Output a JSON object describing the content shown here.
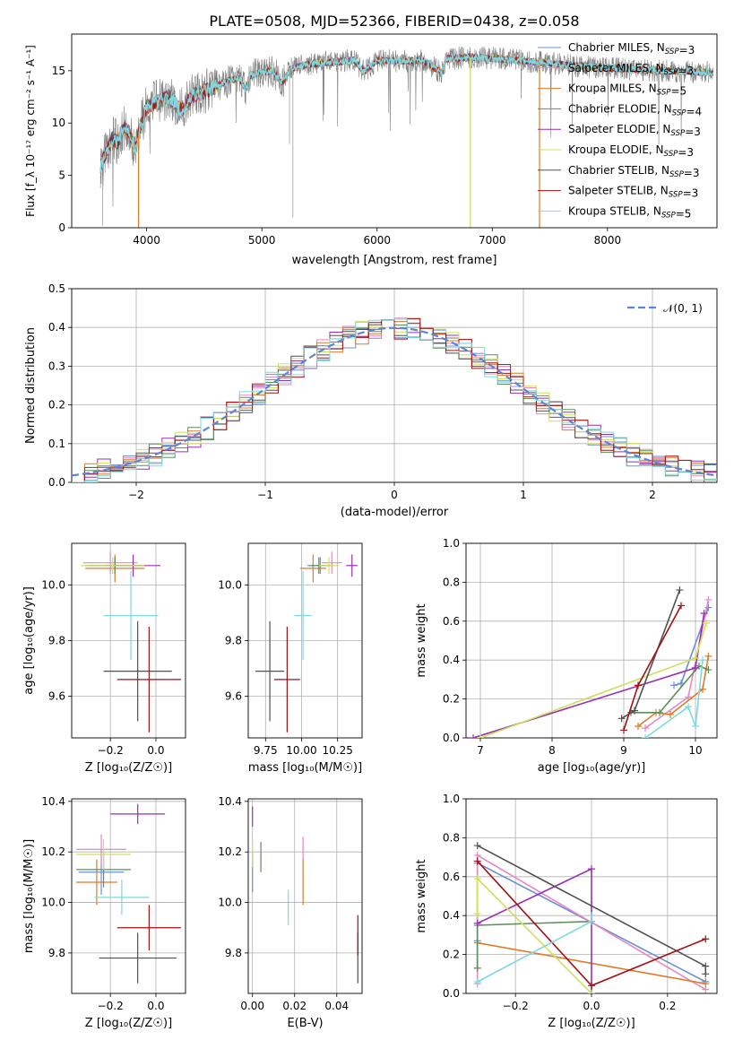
{
  "figure": {
    "title": "PLATE=0508, MJD=52366, FIBERID=0438, z=0.058",
    "series_colors": [
      "#6b8fd6",
      "#e887c3",
      "#e07a26",
      "#5c8f5c",
      "#9a2fb5",
      "#cde05a",
      "#505050",
      "#a50f12",
      "#7fd8e0"
    ]
  },
  "chart_data": [
    {
      "id": "spectrum",
      "type": "line",
      "xlabel": "wavelength [Angstrom, rest frame]",
      "ylabel": "Flux [f_λ 10⁻¹⁷ erg cm⁻² s⁻¹ A⁻¹]",
      "xlim": [
        3350,
        8950
      ],
      "ylim": [
        0,
        18.5
      ],
      "xticks": [
        "4000",
        "5000",
        "6000",
        "7000",
        "8000"
      ],
      "yticks": [
        "0",
        "5",
        "10",
        "15"
      ],
      "data_range": [
        3600,
        8920
      ],
      "grid": false,
      "legend_position": "right",
      "data_series": {
        "name": "",
        "color": "#808080",
        "points": [
          [
            3600,
            6.0
          ],
          [
            3650,
            7.2
          ],
          [
            3700,
            8.5
          ],
          [
            3750,
            8.2
          ],
          [
            3800,
            9.5
          ],
          [
            3850,
            9.1
          ],
          [
            3900,
            7.5
          ],
          [
            3950,
            9.8
          ],
          [
            4000,
            11.5
          ],
          [
            4100,
            12.0
          ],
          [
            4200,
            12.5
          ],
          [
            4300,
            11.2
          ],
          [
            4400,
            12.6
          ],
          [
            4500,
            13.0
          ],
          [
            4600,
            13.5
          ],
          [
            4700,
            14.0
          ],
          [
            4800,
            14.3
          ],
          [
            4860,
            13.2
          ],
          [
            4900,
            14.6
          ],
          [
            5000,
            14.8
          ],
          [
            5100,
            15.0
          ],
          [
            5175,
            13.8
          ],
          [
            5250,
            15.2
          ],
          [
            5400,
            15.6
          ],
          [
            5600,
            15.8
          ],
          [
            5800,
            16.0
          ],
          [
            5890,
            14.9
          ],
          [
            6000,
            16.0
          ],
          [
            6200,
            15.9
          ],
          [
            6400,
            16.0
          ],
          [
            6560,
            14.8
          ],
          [
            6600,
            16.1
          ],
          [
            6800,
            16.3
          ],
          [
            7000,
            16.2
          ],
          [
            7200,
            16.0
          ],
          [
            7400,
            15.8
          ],
          [
            7600,
            15.6
          ],
          [
            7800,
            15.4
          ],
          [
            8000,
            15.3
          ],
          [
            8200,
            15.1
          ],
          [
            8500,
            15.0
          ],
          [
            8920,
            14.8
          ]
        ]
      },
      "model_series": [
        {
          "name": "Chabrier MILES, N$_{SSP}$=3",
          "color": "#6b8fd6"
        },
        {
          "name": "Salpeter MILES, N$_{SSP}$=3",
          "color": "#e887c3"
        },
        {
          "name": "Kroupa MILES, N$_{SSP}$=5",
          "color": "#e07a26"
        },
        {
          "name": "Chabrier ELODIE, N$_{SSP}$=4",
          "color": "#5c8f5c"
        },
        {
          "name": "Salpeter ELODIE, N$_{SSP}$=3",
          "color": "#9a2fb5"
        },
        {
          "name": "Kroupa ELODIE, N$_{SSP}$=3",
          "color": "#cde05a"
        },
        {
          "name": "Chabrier STELIB, N$_{SSP}$=3",
          "color": "#505050"
        },
        {
          "name": "Salpeter STELIB, N$_{SSP}$=3",
          "color": "#a50f12"
        },
        {
          "name": "Kroupa STELIB, N$_{SSP}$=5",
          "color": "#7fd8e0"
        }
      ],
      "drop_lines": [
        {
          "x": 3930,
          "color": "#e07a26"
        },
        {
          "x": 6810,
          "color": "#cde05a"
        },
        {
          "x": 7410,
          "color": "#e07a26"
        }
      ]
    },
    {
      "id": "residuals",
      "type": "line",
      "xlabel": "(data-model)/error",
      "ylabel": "Normed distribution",
      "xlim": [
        -2.5,
        2.5
      ],
      "ylim": [
        0,
        0.5
      ],
      "xticks": [
        "−2",
        "−1",
        "0",
        "1",
        "2"
      ],
      "xtick_values": [
        -2,
        -1,
        0,
        1,
        2
      ],
      "yticks": [
        "0.0",
        "0.1",
        "0.2",
        "0.3",
        "0.4",
        "0.5"
      ],
      "ytick_values": [
        0,
        0.1,
        0.2,
        0.3,
        0.4,
        0.5
      ],
      "grid": true,
      "legend": [
        "$\\mathcal{N}(0,1)$"
      ],
      "legend_position": "top-right",
      "bin_width": 0.1,
      "bin_start": -2.5,
      "reference_curve": {
        "name": "$\\mathcal{N}(0,1)$",
        "color": "#5b86d6",
        "mean": 0,
        "sigma": 1
      }
    },
    {
      "id": "age_vs_Z",
      "type": "scatter",
      "xlabel": "Z [log₁₀(Z/Z☉)]",
      "ylabel": "age  [log₁₀(age/yr)]",
      "xlim": [
        -0.37,
        0.13
      ],
      "ylim": [
        9.45,
        10.15
      ],
      "xticks": [
        "−0.2",
        "0.0"
      ],
      "xtick_values": [
        -0.2,
        0.0
      ],
      "yticks": [
        "9.6",
        "9.8",
        "10.0"
      ],
      "ytick_values": [
        9.6,
        9.8,
        10.0
      ],
      "grid": true,
      "error_points": [
        {
          "series": 0,
          "x": -0.18,
          "y": 10.07,
          "xerr": 0.12,
          "yerr": 0.03
        },
        {
          "series": 1,
          "x": -0.2,
          "y": 10.08,
          "xerr": 0.12,
          "yerr": 0.04
        },
        {
          "series": 2,
          "x": -0.18,
          "y": 10.06,
          "xerr": 0.13,
          "yerr": 0.05
        },
        {
          "series": 3,
          "x": -0.18,
          "y": 10.07,
          "xerr": 0.13,
          "yerr": 0.03
        },
        {
          "series": 4,
          "x": -0.1,
          "y": 10.07,
          "xerr": 0.12,
          "yerr": 0.04
        },
        {
          "series": 5,
          "x": -0.19,
          "y": 10.07,
          "xerr": 0.14,
          "yerr": 0.03
        },
        {
          "series": 6,
          "x": -0.08,
          "y": 9.69,
          "xerr": 0.15,
          "yerr": 0.18
        },
        {
          "series": 7,
          "x": -0.03,
          "y": 9.66,
          "xerr": 0.14,
          "yerr": 0.19
        },
        {
          "series": 8,
          "x": -0.11,
          "y": 9.89,
          "xerr": 0.12,
          "yerr": 0.16
        }
      ]
    },
    {
      "id": "age_vs_mass",
      "type": "scatter",
      "xlabel": "mass [log₁₀(M/M☉)]",
      "ylabel": "",
      "xlim": [
        9.63,
        10.42
      ],
      "ylim": [
        9.45,
        10.15
      ],
      "xticks": [
        "9.75",
        "10.00",
        "10.25"
      ],
      "xtick_values": [
        9.75,
        10.0,
        10.25
      ],
      "yticks": [
        "9.6",
        "9.8",
        "10.0"
      ],
      "ytick_values": [
        9.6,
        9.8,
        10.0
      ],
      "grid": true,
      "error_points": [
        {
          "series": 0,
          "x": 10.13,
          "y": 10.07,
          "xerr": 0.09,
          "yerr": 0.03
        },
        {
          "series": 1,
          "x": 10.21,
          "y": 10.08,
          "xerr": 0.07,
          "yerr": 0.04
        },
        {
          "series": 2,
          "x": 10.08,
          "y": 10.06,
          "xerr": 0.09,
          "yerr": 0.05
        },
        {
          "series": 3,
          "x": 10.12,
          "y": 10.07,
          "xerr": 0.07,
          "yerr": 0.03
        },
        {
          "series": 4,
          "x": 10.35,
          "y": 10.07,
          "xerr": 0.04,
          "yerr": 0.04
        },
        {
          "series": 5,
          "x": 10.19,
          "y": 10.07,
          "xerr": 0.07,
          "yerr": 0.03
        },
        {
          "series": 6,
          "x": 9.78,
          "y": 9.69,
          "xerr": 0.1,
          "yerr": 0.18
        },
        {
          "series": 7,
          "x": 9.9,
          "y": 9.66,
          "xerr": 0.09,
          "yerr": 0.19
        },
        {
          "series": 8,
          "x": 10.01,
          "y": 9.89,
          "xerr": 0.06,
          "yerr": 0.16
        }
      ]
    },
    {
      "id": "weight_vs_age",
      "type": "line",
      "xlabel": "age  [log₁₀(age/yr)]",
      "ylabel": "mass weight",
      "xlim": [
        6.8,
        10.3
      ],
      "ylim": [
        0,
        1
      ],
      "xticks": [
        "7",
        "8",
        "9",
        "10"
      ],
      "xtick_values": [
        7,
        8,
        9,
        10
      ],
      "yticks": [
        "0.0",
        "0.2",
        "0.4",
        "0.6",
        "0.8",
        "1.0"
      ],
      "ytick_values": [
        0,
        0.2,
        0.4,
        0.6,
        0.8,
        1.0
      ],
      "grid": true,
      "series": [
        {
          "color": "#6b8fd6",
          "points": [
            [
              9.7,
              0.27
            ],
            [
              9.8,
              0.28
            ],
            [
              10.18,
              0.67
            ]
          ]
        },
        {
          "color": "#e887c3",
          "points": [
            [
              9.3,
              0.05
            ],
            [
              9.9,
              0.21
            ],
            [
              10.18,
              0.71
            ]
          ]
        },
        {
          "color": "#e07a26",
          "points": [
            [
              9.2,
              0.06
            ],
            [
              9.45,
              0.13
            ],
            [
              9.65,
              0.12
            ],
            [
              10.1,
              0.25
            ],
            [
              10.18,
              0.42
            ]
          ]
        },
        {
          "color": "#5c8f5c",
          "points": [
            [
              9.1,
              0.13
            ],
            [
              9.5,
              0.13
            ],
            [
              10.05,
              0.37
            ],
            [
              10.18,
              0.35
            ]
          ]
        },
        {
          "color": "#9a2fb5",
          "points": [
            [
              6.9,
              0.0
            ],
            [
              10.0,
              0.36
            ],
            [
              10.12,
              0.64
            ]
          ]
        },
        {
          "color": "#cde05a",
          "points": [
            [
              7.0,
              0.0
            ],
            [
              10.0,
              0.41
            ],
            [
              10.15,
              0.59
            ]
          ]
        },
        {
          "color": "#505050",
          "points": [
            [
              8.97,
              0.1
            ],
            [
              9.15,
              0.14
            ],
            [
              9.78,
              0.76
            ]
          ]
        },
        {
          "color": "#a50f12",
          "points": [
            [
              9.0,
              0.04
            ],
            [
              9.2,
              0.27
            ],
            [
              9.8,
              0.68
            ]
          ]
        },
        {
          "color": "#7fd8e0",
          "points": [
            [
              9.3,
              0.0
            ],
            [
              9.9,
              0.16
            ],
            [
              10.0,
              0.06
            ],
            [
              10.1,
              0.4
            ]
          ]
        }
      ]
    },
    {
      "id": "mass_vs_Z",
      "type": "scatter",
      "xlabel": "Z [log₁₀(Z/Z☉)]",
      "ylabel": "mass [log₁₀(M/M☉)]",
      "xlim": [
        -0.37,
        0.13
      ],
      "ylim": [
        9.64,
        10.41
      ],
      "xticks": [
        "−0.2",
        "0.0"
      ],
      "xtick_values": [
        -0.2,
        0.0
      ],
      "yticks": [
        "9.8",
        "10.0",
        "10.2",
        "10.4"
      ],
      "ytick_values": [
        9.8,
        10.0,
        10.2,
        10.4
      ],
      "grid": true,
      "error_points": [
        {
          "series": 0,
          "x": -0.24,
          "y": 10.12,
          "xerr": 0.1,
          "yerr": 0.09
        },
        {
          "series": 1,
          "x": -0.24,
          "y": 10.21,
          "xerr": 0.11,
          "yerr": 0.06
        },
        {
          "series": 2,
          "x": -0.26,
          "y": 10.08,
          "xerr": 0.09,
          "yerr": 0.09
        },
        {
          "series": 3,
          "x": -0.23,
          "y": 10.13,
          "xerr": 0.12,
          "yerr": 0.07
        },
        {
          "series": 4,
          "x": -0.08,
          "y": 10.35,
          "xerr": 0.12,
          "yerr": 0.04
        },
        {
          "series": 5,
          "x": -0.23,
          "y": 10.19,
          "xerr": 0.12,
          "yerr": 0.06
        },
        {
          "series": 6,
          "x": -0.08,
          "y": 9.78,
          "xerr": 0.17,
          "yerr": 0.1
        },
        {
          "series": 7,
          "x": -0.03,
          "y": 9.9,
          "xerr": 0.14,
          "yerr": 0.09
        },
        {
          "series": 8,
          "x": -0.15,
          "y": 10.02,
          "xerr": 0.12,
          "yerr": 0.07
        }
      ]
    },
    {
      "id": "mass_vs_ebv",
      "type": "scatter",
      "xlabel": "E(B-V)",
      "ylabel": "",
      "xlim": [
        -0.002,
        0.052
      ],
      "ylim": [
        9.64,
        10.41
      ],
      "xticks": [
        "0.00",
        "0.02",
        "0.04"
      ],
      "xtick_values": [
        0.0,
        0.02,
        0.04
      ],
      "yticks": [
        "9.8",
        "10.0",
        "10.2",
        "10.4"
      ],
      "ytick_values": [
        9.8,
        10.0,
        10.2,
        10.4
      ],
      "grid": true,
      "error_points": [
        {
          "series": 0,
          "x": 0.0,
          "y": 10.12,
          "xerr": 0,
          "yerr": 0.08
        },
        {
          "series": 1,
          "x": 0.024,
          "y": 10.21,
          "xerr": 0,
          "yerr": 0.05
        },
        {
          "series": 2,
          "x": 0.024,
          "y": 10.08,
          "xerr": 0,
          "yerr": 0.09
        },
        {
          "series": 3,
          "x": 0.004,
          "y": 10.18,
          "xerr": 0,
          "yerr": 0.06
        },
        {
          "series": 4,
          "x": 0.0,
          "y": 10.34,
          "xerr": 0,
          "yerr": 0.04
        },
        {
          "series": 5,
          "x": 0.0,
          "y": 10.19,
          "xerr": 0,
          "yerr": 0.05
        },
        {
          "series": 6,
          "x": 0.05,
          "y": 9.78,
          "xerr": 0,
          "yerr": 0.1
        },
        {
          "series": 7,
          "x": 0.05,
          "y": 9.87,
          "xerr": 0,
          "yerr": 0.08
        },
        {
          "series": 8,
          "x": 0.017,
          "y": 9.98,
          "xerr": 0,
          "yerr": 0.07
        }
      ]
    },
    {
      "id": "weight_vs_Z",
      "type": "line",
      "xlabel": "Z [log₁₀(Z/Z☉)]",
      "ylabel": "mass weight",
      "xlim": [
        -0.33,
        0.33
      ],
      "ylim": [
        0,
        1
      ],
      "xticks": [
        "−0.2",
        "0.0",
        "0.2"
      ],
      "xtick_values": [
        -0.2,
        0.0,
        0.2
      ],
      "yticks": [
        "0.0",
        "0.2",
        "0.4",
        "0.6",
        "0.8",
        "1.0"
      ],
      "ytick_values": [
        0,
        0.2,
        0.4,
        0.6,
        0.8,
        1.0
      ],
      "grid": true,
      "series": [
        {
          "color": "#6b8fd6",
          "points": [
            [
              -0.3,
              0.27
            ],
            [
              -0.3,
              0.67
            ],
            [
              0.3,
              0.06
            ]
          ]
        },
        {
          "color": "#e887c3",
          "points": [
            [
              -0.3,
              0.05
            ],
            [
              -0.3,
              0.71
            ],
            [
              0.3,
              0.02
            ]
          ]
        },
        {
          "color": "#e07a26",
          "points": [
            [
              -0.3,
              0.13
            ],
            [
              -0.3,
              0.26
            ],
            [
              0.3,
              0.05
            ]
          ]
        },
        {
          "color": "#5c8f5c",
          "points": [
            [
              -0.3,
              0.13
            ],
            [
              -0.3,
              0.35
            ],
            [
              0.0,
              0.37
            ],
            [
              0.0,
              0.37
            ]
          ]
        },
        {
          "color": "#9a2fb5",
          "points": [
            [
              -0.3,
              0.36
            ],
            [
              0.0,
              0.64
            ],
            [
              0.0,
              0.0
            ]
          ]
        },
        {
          "color": "#cde05a",
          "points": [
            [
              -0.3,
              0.41
            ],
            [
              -0.3,
              0.59
            ],
            [
              0.0,
              0.0
            ]
          ]
        },
        {
          "color": "#505050",
          "points": [
            [
              -0.3,
              0.76
            ],
            [
              0.3,
              0.14
            ],
            [
              0.3,
              0.1
            ]
          ]
        },
        {
          "color": "#a50f12",
          "points": [
            [
              -0.3,
              0.68
            ],
            [
              0.0,
              0.04
            ],
            [
              0.3,
              0.28
            ]
          ]
        },
        {
          "color": "#7fd8e0",
          "points": [
            [
              -0.3,
              0.06
            ],
            [
              0.0,
              0.37
            ],
            [
              0.0,
              0.4
            ]
          ]
        }
      ]
    }
  ]
}
